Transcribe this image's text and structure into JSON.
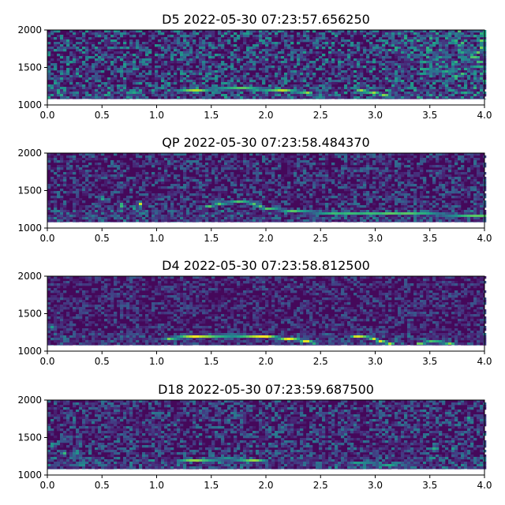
{
  "chart_data": [
    {
      "type": "heatmap",
      "title": "D5 2022-05-30 07:23:57.656250",
      "xlim": [
        0.0,
        4.0
      ],
      "ylim": [
        1000,
        2000
      ],
      "x_ticks": [
        "0.0",
        "0.5",
        "1.0",
        "1.5",
        "2.0",
        "2.5",
        "3.0",
        "3.5",
        "4.0"
      ],
      "y_ticks": [
        "1000",
        "1500",
        "2000"
      ],
      "data_floor": 1080,
      "colormap": "viridis",
      "noise_level": 0.55,
      "hot_region": {
        "x_start": 2.9,
        "y_start": 1300,
        "boost": 0.35
      },
      "tracks": [
        {
          "x": [
            1.2,
            1.5,
            1.8,
            2.1,
            2.4
          ],
          "y": [
            1180,
            1210,
            1220,
            1200,
            1165
          ],
          "intensity": 0.9
        },
        {
          "x": [
            2.85,
            3.0,
            3.15
          ],
          "y": [
            1200,
            1160,
            1110
          ],
          "intensity": 0.85
        }
      ],
      "blobs": [
        {
          "x": 0.25,
          "y": 1600,
          "intensity": 0.7
        },
        {
          "x": 0.27,
          "y": 1420,
          "intensity": 0.6
        },
        {
          "x": 0.82,
          "y": 1800,
          "intensity": 0.55
        }
      ]
    },
    {
      "type": "heatmap",
      "title": "QP 2022-05-30 07:23:58.484370",
      "xlim": [
        0.0,
        4.0
      ],
      "ylim": [
        1000,
        2000
      ],
      "x_ticks": [
        "0.0",
        "0.5",
        "1.0",
        "1.5",
        "2.0",
        "2.5",
        "3.0",
        "3.5",
        "4.0"
      ],
      "y_ticks": [
        "1000",
        "1500",
        "2000"
      ],
      "data_floor": 1080,
      "colormap": "viridis",
      "noise_level": 0.38,
      "tracks": [
        {
          "x": [
            1.45,
            1.6,
            1.75,
            1.85,
            2.0,
            2.3,
            2.6,
            3.0,
            3.4,
            3.8,
            4.0
          ],
          "y": [
            1280,
            1330,
            1350,
            1340,
            1260,
            1220,
            1200,
            1200,
            1190,
            1170,
            1160
          ],
          "intensity": 0.75
        }
      ],
      "blobs": [
        {
          "x": 0.5,
          "y": 1400,
          "intensity": 0.75
        },
        {
          "x": 0.68,
          "y": 1300,
          "intensity": 0.95
        },
        {
          "x": 0.85,
          "y": 1320,
          "intensity": 0.95
        },
        {
          "x": 0.8,
          "y": 1270,
          "intensity": 0.7
        }
      ]
    },
    {
      "type": "heatmap",
      "title": "D4 2022-05-30 07:23:58.812500",
      "xlim": [
        0.0,
        4.0
      ],
      "ylim": [
        1000,
        2000
      ],
      "x_ticks": [
        "0.0",
        "0.5",
        "1.0",
        "1.5",
        "2.0",
        "2.5",
        "3.0",
        "3.5",
        "4.0"
      ],
      "y_ticks": [
        "1000",
        "1500",
        "2000"
      ],
      "data_floor": 1080,
      "colormap": "viridis",
      "noise_level": 0.3,
      "tracks": [
        {
          "x": [
            1.1,
            1.4,
            1.7,
            2.0,
            2.3,
            2.45
          ],
          "y": [
            1170,
            1200,
            1210,
            1195,
            1150,
            1110
          ],
          "intensity": 1.0
        },
        {
          "x": [
            2.8,
            2.95,
            3.05,
            3.15
          ],
          "y": [
            1200,
            1180,
            1130,
            1100
          ],
          "intensity": 0.95
        },
        {
          "x": [
            3.4,
            3.5,
            3.6,
            3.7
          ],
          "y": [
            1100,
            1125,
            1120,
            1100
          ],
          "intensity": 0.85
        }
      ],
      "blobs": [
        {
          "x": 0.05,
          "y": 1320,
          "intensity": 0.7
        },
        {
          "x": 3.2,
          "y": 1150,
          "intensity": 0.6
        }
      ]
    },
    {
      "type": "heatmap",
      "title": "D18 2022-05-30 07:23:59.687500",
      "xlim": [
        0.0,
        4.0
      ],
      "ylim": [
        1000,
        2000
      ],
      "x_ticks": [
        "0.0",
        "0.5",
        "1.0",
        "1.5",
        "2.0",
        "2.5",
        "3.0",
        "3.5",
        "4.0"
      ],
      "y_ticks": [
        "1000",
        "1500",
        "2000"
      ],
      "data_floor": 1080,
      "colormap": "viridis",
      "noise_level": 0.42,
      "tracks": [
        {
          "x": [
            1.2,
            1.4,
            1.65,
            1.85,
            2.0
          ],
          "y": [
            1180,
            1200,
            1215,
            1200,
            1180
          ],
          "intensity": 0.85
        },
        {
          "x": [
            2.8,
            3.0,
            3.2
          ],
          "y": [
            1160,
            1150,
            1120
          ],
          "intensity": 0.6
        }
      ],
      "blobs": [
        {
          "x": 0.05,
          "y": 1400,
          "intensity": 0.7
        },
        {
          "x": 0.15,
          "y": 1290,
          "intensity": 0.85
        },
        {
          "x": 0.28,
          "y": 1300,
          "intensity": 0.8
        },
        {
          "x": 1.65,
          "y": 1730,
          "intensity": 0.6
        },
        {
          "x": 1.78,
          "y": 1720,
          "intensity": 0.55
        },
        {
          "x": 3.55,
          "y": 1350,
          "intensity": 0.9
        },
        {
          "x": 3.72,
          "y": 1350,
          "intensity": 0.8
        },
        {
          "x": 3.5,
          "y": 1220,
          "intensity": 0.7
        },
        {
          "x": 3.85,
          "y": 1750,
          "intensity": 0.7
        },
        {
          "x": 3.98,
          "y": 1730,
          "intensity": 0.6
        }
      ]
    }
  ]
}
